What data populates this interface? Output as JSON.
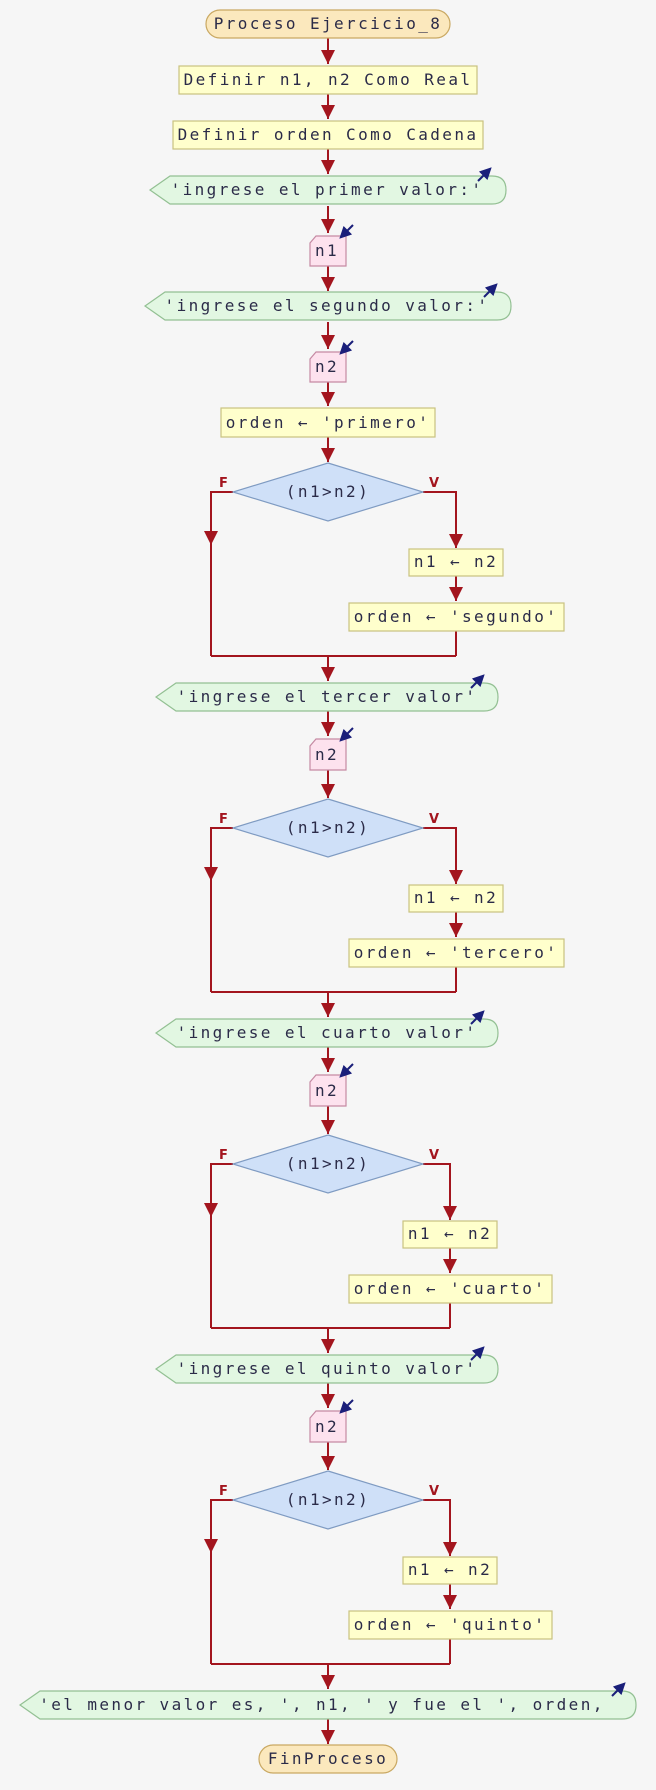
{
  "diagram": {
    "title": "Proceso Ejercicio_8",
    "end_label": "FinProceso",
    "declarations": [
      "Definir n1, n2 Como Real",
      "Definir orden Como Cadena"
    ],
    "prompt_first": "'ingrese el primer valor:'",
    "read_first": "n1",
    "prompt_second": "'ingrese el segundo valor:'",
    "read_second": "n2",
    "init_assign": "orden ← 'primero'",
    "true_flag": "V",
    "false_flag": "F",
    "blocks": [
      {
        "condition": "(n1>n2)",
        "assign_n1": "n1 ← n2",
        "assign_order": "orden ← 'segundo'"
      },
      {
        "prompt": "'ingrese el tercer valor'",
        "read": "n2",
        "condition": "(n1>n2)",
        "assign_n1": "n1 ← n2",
        "assign_order": "orden ← 'tercero'"
      },
      {
        "prompt": "'ingrese el cuarto valor'",
        "read": "n2",
        "condition": "(n1>n2)",
        "assign_n1": "n1 ← n2",
        "assign_order": "orden ← 'cuarto'"
      },
      {
        "prompt": "'ingrese el quinto valor'",
        "read": "n2",
        "condition": "(n1>n2)",
        "assign_n1": "n1 ← n2",
        "assign_order": "orden ← 'quinto'"
      }
    ],
    "final_output": "'el menor valor es, ', n1, ' y fue el ', orden,"
  }
}
